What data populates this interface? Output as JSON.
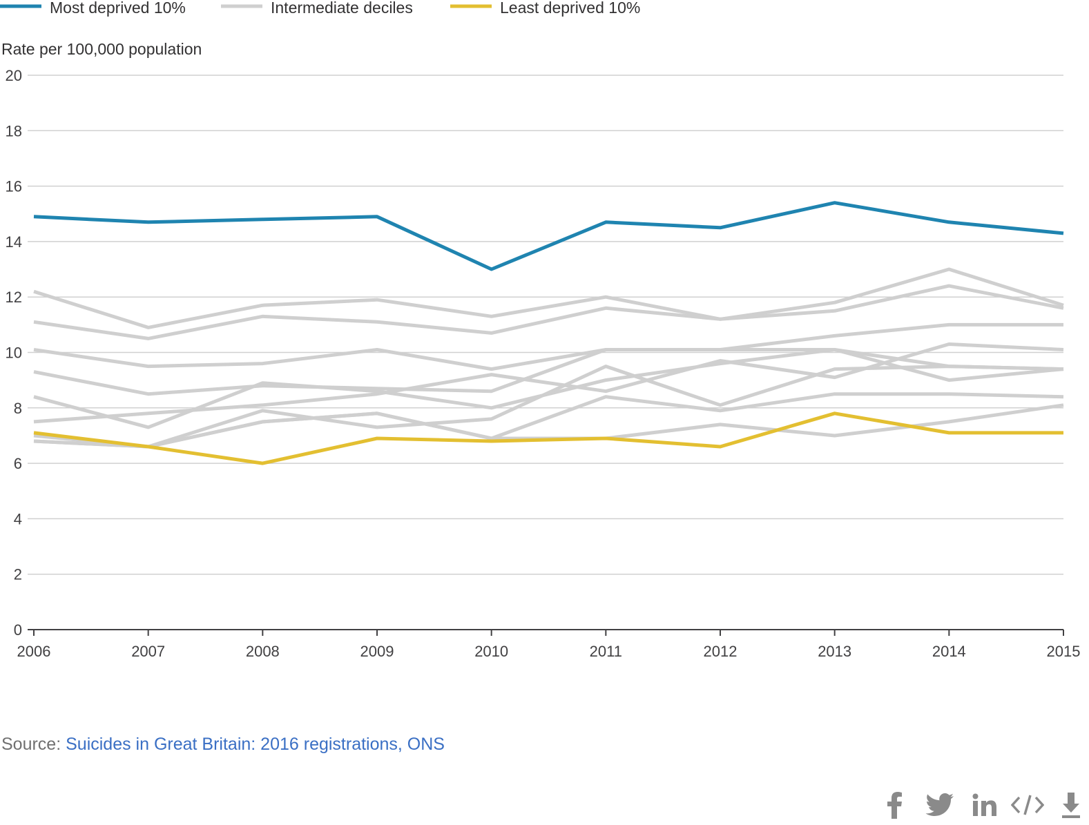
{
  "chart_data": {
    "type": "line",
    "ylabel": "Rate per 100,000 population",
    "x": [
      "2006",
      "2007",
      "2008",
      "2009",
      "2010",
      "2011",
      "2012",
      "2013",
      "2014",
      "2015"
    ],
    "ylim": [
      0,
      20
    ],
    "yticks": [
      "0",
      "2",
      "4",
      "6",
      "8",
      "10",
      "12",
      "14",
      "16",
      "18",
      "20"
    ],
    "grid": true,
    "legend_position": "top-left",
    "legend": [
      {
        "label": "Most deprived 10%",
        "color": "#1f84b0"
      },
      {
        "label": "Intermediate deciles",
        "color": "#cfcfcf"
      },
      {
        "label": "Least deprived 10%",
        "color": "#e3bf31"
      }
    ],
    "series": [
      {
        "name": "Most deprived 10%",
        "color": "#1f84b0",
        "values": [
          14.9,
          14.7,
          14.8,
          14.9,
          13.0,
          14.7,
          14.5,
          15.4,
          14.7,
          14.3
        ]
      },
      {
        "group": "Intermediate deciles",
        "color": "#cfcfcf",
        "values": [
          12.2,
          10.9,
          11.7,
          11.9,
          11.3,
          12.0,
          11.2,
          11.8,
          13.0,
          11.7
        ]
      },
      {
        "group": "Intermediate deciles",
        "color": "#cfcfcf",
        "values": [
          11.1,
          10.5,
          11.3,
          11.1,
          10.7,
          11.6,
          11.2,
          11.5,
          12.4,
          11.6
        ]
      },
      {
        "group": "Intermediate deciles",
        "color": "#cfcfcf",
        "values": [
          10.1,
          9.5,
          9.6,
          10.1,
          9.4,
          10.1,
          10.1,
          10.6,
          11.0,
          11.0
        ]
      },
      {
        "group": "Intermediate deciles",
        "color": "#cfcfcf",
        "values": [
          9.3,
          8.5,
          8.8,
          8.7,
          8.6,
          10.1,
          10.1,
          10.1,
          9.5,
          9.4
        ]
      },
      {
        "group": "Intermediate deciles",
        "color": "#cfcfcf",
        "values": [
          7.5,
          7.8,
          8.1,
          8.5,
          9.2,
          8.6,
          9.7,
          9.1,
          10.3,
          10.1
        ]
      },
      {
        "group": "Intermediate deciles",
        "color": "#cfcfcf",
        "values": [
          8.4,
          7.3,
          8.9,
          8.6,
          8.0,
          9.0,
          9.6,
          10.1,
          9.0,
          9.4
        ]
      },
      {
        "group": "Intermediate deciles",
        "color": "#cfcfcf",
        "values": [
          6.8,
          6.6,
          7.9,
          7.3,
          7.6,
          9.5,
          8.1,
          9.4,
          9.5,
          9.4
        ]
      },
      {
        "group": "Intermediate deciles",
        "color": "#cfcfcf",
        "values": [
          7.0,
          6.6,
          7.5,
          7.8,
          6.9,
          8.4,
          7.9,
          8.5,
          8.5,
          8.4
        ]
      },
      {
        "group": "Intermediate deciles",
        "color": "#cfcfcf",
        "values": [
          6.8,
          6.6,
          7.5,
          7.8,
          6.9,
          6.9,
          7.4,
          7.0,
          7.5,
          8.1
        ]
      },
      {
        "name": "Least deprived 10%",
        "color": "#e3bf31",
        "values": [
          7.1,
          6.6,
          6.0,
          6.9,
          6.8,
          6.9,
          6.6,
          7.8,
          7.1,
          7.1
        ]
      }
    ]
  },
  "source": {
    "prefix": "Source: ",
    "link_text": "Suicides in Great Britain: 2016 registrations, ONS"
  },
  "share_icons": [
    "facebook-icon",
    "twitter-icon",
    "linkedin-icon",
    "embed-code-icon",
    "download-icon"
  ]
}
